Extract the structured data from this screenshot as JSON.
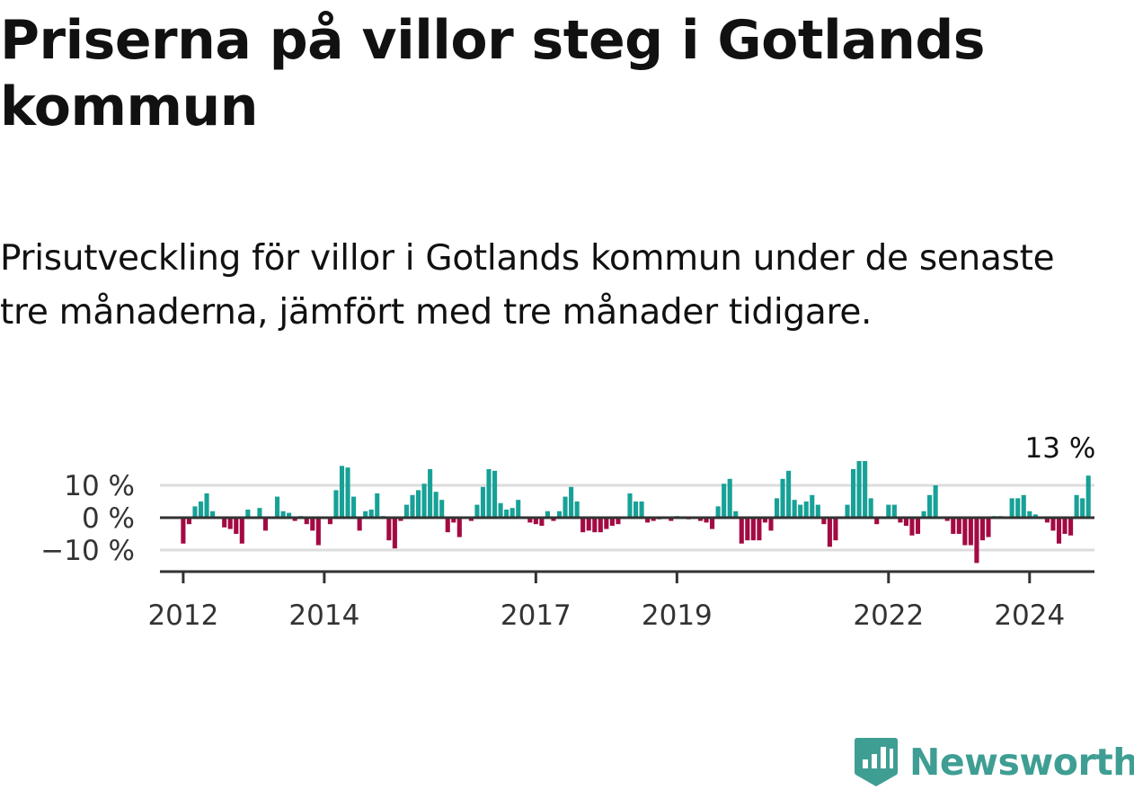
{
  "header": {
    "title": "Priserna på villor steg i Gotlands kommun",
    "subtitle": "Prisutveckling för villor i Gotlands kommun under de senaste tre månaderna, jämfört med tre månader tidigare."
  },
  "brand": {
    "name": "Newsworthy",
    "icon": "newsworthy-logo-icon",
    "color": "#3f9e93"
  },
  "colors": {
    "positive": "#17a197",
    "negative": "#a30a43",
    "zero_line": "#333333",
    "grid": "#dddddd"
  },
  "chart_data": {
    "type": "bar",
    "title": "",
    "xlabel": "",
    "ylabel": "",
    "ylim": [
      -15,
      17
    ],
    "xlim": [
      2011.67,
      2024.92
    ],
    "y_ticks": [
      10,
      0,
      -10
    ],
    "y_tick_labels": [
      "10 %",
      "0 %",
      "−10 %"
    ],
    "x_ticks": [
      2012,
      2014,
      2017,
      2019,
      2022,
      2024
    ],
    "x_tick_labels": [
      "2012",
      "2014",
      "2017",
      "2019",
      "2022",
      "2024"
    ],
    "grid": true,
    "annotation": {
      "text": "13 %",
      "x": 2024.333,
      "y": 13
    },
    "start_date": "2012-01",
    "frequency": "monthly",
    "values": [
      -8,
      -2,
      3.5,
      5,
      7.5,
      2,
      0,
      -3,
      -3.5,
      -5,
      -8,
      2.5,
      0,
      3,
      -4,
      0,
      6.5,
      2,
      1.5,
      -1,
      0.5,
      -2,
      -4,
      -8.5,
      0,
      -2,
      8.5,
      16,
      15.5,
      6.5,
      -4,
      2,
      2.5,
      7.5,
      0.5,
      -7,
      -9.5,
      -1,
      4,
      7,
      8.5,
      10.5,
      15,
      8,
      5.5,
      -4.5,
      -1.5,
      -6,
      0,
      -1,
      4,
      9.5,
      15,
      14.5,
      4.5,
      2.5,
      3,
      5.5,
      0,
      -1.5,
      -2,
      -2.5,
      2,
      -1,
      2,
      6.5,
      9.5,
      5,
      -4.5,
      -4,
      -4.5,
      -4.5,
      -3.5,
      -2.5,
      -2,
      0,
      7.5,
      5,
      5,
      -1.5,
      -1,
      -0.5,
      0,
      -1,
      0.5,
      0,
      -0.5,
      0,
      -1,
      -1.5,
      -3.5,
      3.5,
      10.5,
      12,
      2,
      -8,
      -7,
      -7,
      -7,
      -1.5,
      -4,
      6,
      12,
      14.5,
      5.5,
      4,
      5,
      7,
      4,
      -2,
      -9,
      -7,
      0,
      4,
      15,
      17.5,
      17.5,
      6,
      -2,
      0,
      4,
      4,
      -1.5,
      -2.5,
      -5.5,
      -5,
      2,
      7,
      10,
      0,
      -1,
      -5,
      -5,
      -8.5,
      -8.5,
      -14,
      -7,
      -6,
      0.5,
      0.5,
      0,
      6,
      6,
      7,
      2,
      1,
      0,
      -1.5,
      -4,
      -8,
      -5,
      -5.5,
      7,
      6,
      13
    ]
  }
}
